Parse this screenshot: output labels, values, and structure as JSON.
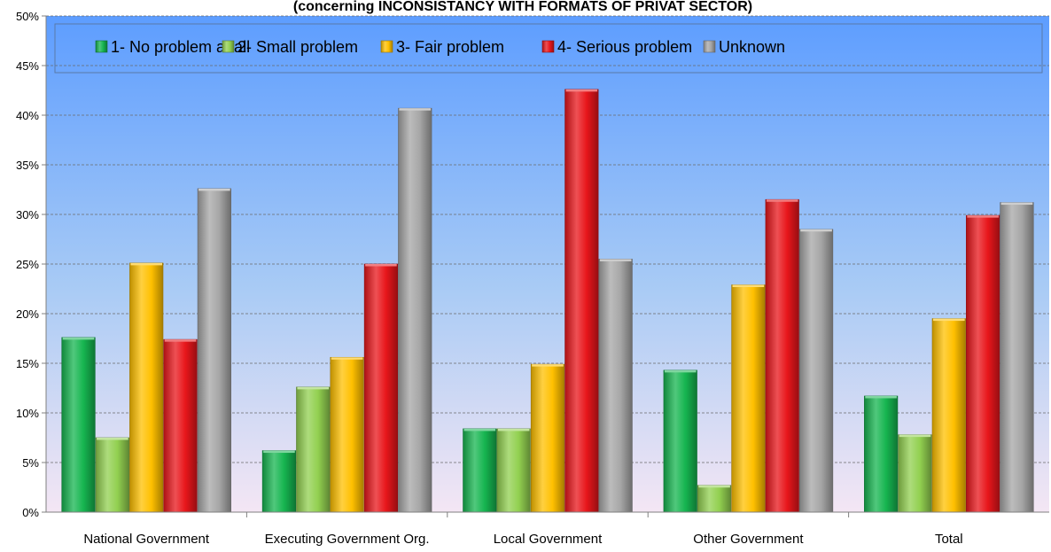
{
  "chart_data": {
    "type": "bar",
    "title": "(concerning INCONSISTANCY WITH FORMATS OF PRIVAT SECTOR)",
    "xlabel": "",
    "ylabel": "",
    "ylim": [
      0,
      50
    ],
    "y_ticks": [
      "0%",
      "5%",
      "10%",
      "15%",
      "20%",
      "25%",
      "30%",
      "35%",
      "40%",
      "45%",
      "50%"
    ],
    "grid": true,
    "legend_position": "top",
    "categories": [
      "National Government",
      "Executing Government Org.",
      "Local Government",
      "Other Government",
      "Total"
    ],
    "series": [
      {
        "name": "1- No problem at all",
        "color": "#16b550",
        "values": [
          17.6,
          6.2,
          8.4,
          14.3,
          11.7
        ]
      },
      {
        "name": "2- Small problem",
        "color": "#92d050",
        "values": [
          7.5,
          12.6,
          8.4,
          2.7,
          7.8
        ]
      },
      {
        "name": "3- Fair problem",
        "color": "#ffc000",
        "values": [
          25.1,
          15.6,
          14.9,
          22.9,
          19.5
        ]
      },
      {
        "name": "4- Serious problem",
        "color": "#e8161b",
        "values": [
          17.4,
          25.0,
          42.6,
          31.5,
          29.9
        ]
      },
      {
        "name": "Unknown",
        "color": "#a6a6a6",
        "values": [
          32.6,
          40.7,
          25.5,
          28.5,
          31.2
        ]
      }
    ]
  }
}
